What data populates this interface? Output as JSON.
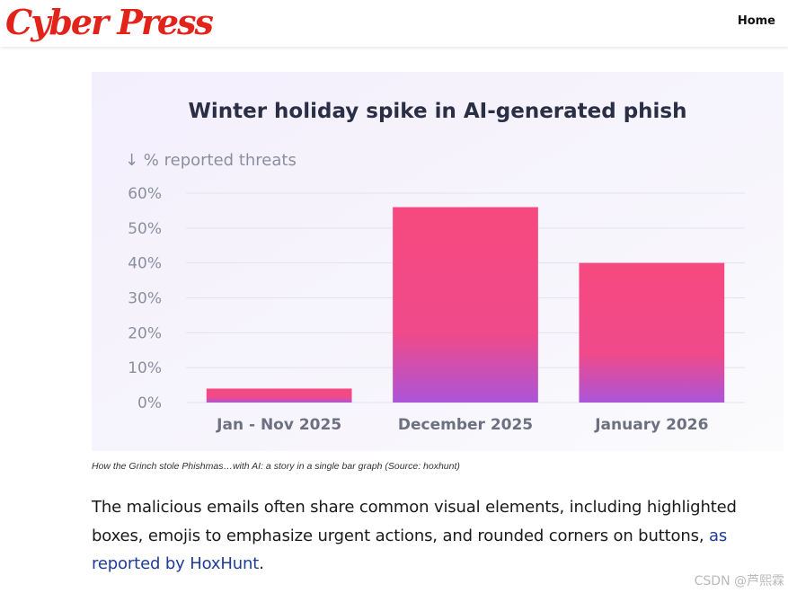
{
  "header": {
    "logo": "Cyber Press",
    "nav_home": "Home"
  },
  "chart_data": {
    "type": "bar",
    "title": "Winter holiday spike in AI-generated phish",
    "ylabel": "↓ % reported threats",
    "categories": [
      "Jan - Nov 2025",
      "December 2025",
      "January 2026"
    ],
    "values": [
      4,
      56,
      40
    ],
    "ylim": [
      0,
      60
    ],
    "yticks": [
      "0%",
      "10%",
      "20%",
      "30%",
      "40%",
      "50%",
      "60%"
    ],
    "grid": true,
    "colors": {
      "bar_top": "#f6497f",
      "bar_bottom": "#ab55d9",
      "background": "#f6f3fc",
      "title": "#2a2f45",
      "axis_text": "#8a8f9f",
      "category_text": "#6c7080"
    }
  },
  "caption": "How the Grinch stole Phishmas…with AI: a story in a single bar graph (Source: hoxhunt)",
  "body": {
    "text_before_link": "The malicious emails often share common visual elements, including highlighted boxes, emojis to emphasize urgent actions, and rounded corners on buttons, ",
    "link_text": "as reported by HoxHunt",
    "text_after_link": "."
  },
  "watermark": "CSDN @芦熙霖"
}
